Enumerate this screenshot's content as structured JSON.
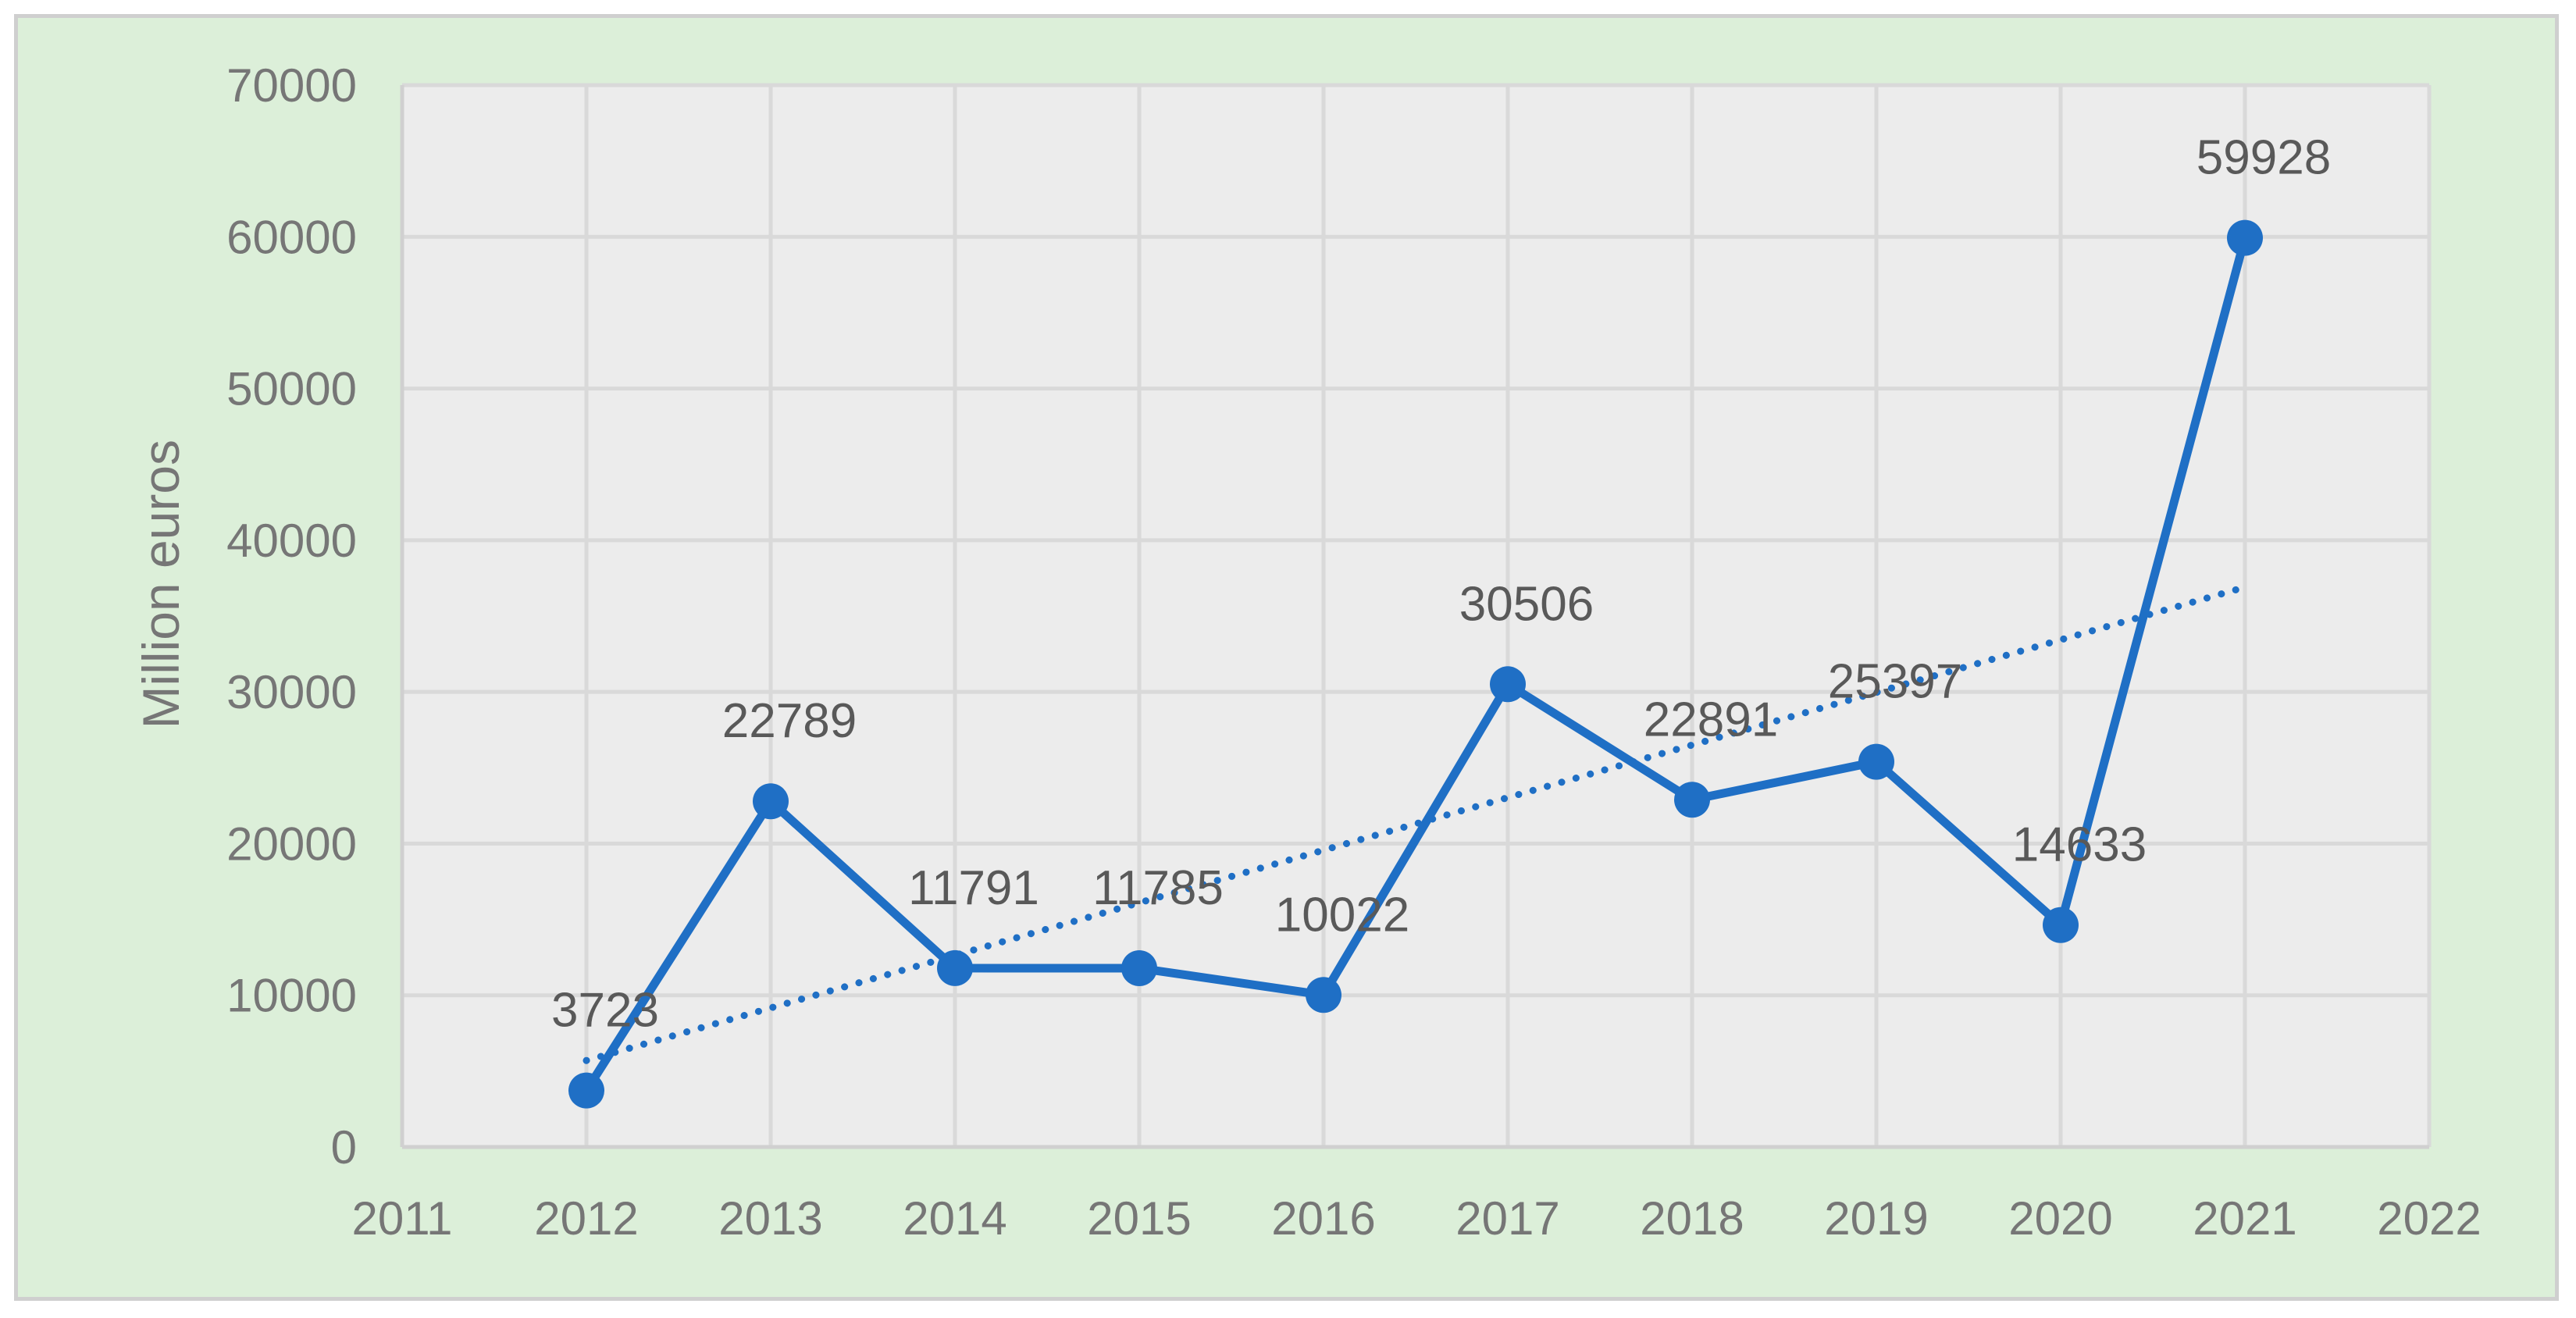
{
  "chart_data": {
    "type": "line",
    "title": "",
    "xlabel": "",
    "ylabel": "Million euros",
    "x": [
      2012,
      2013,
      2014,
      2015,
      2016,
      2017,
      2018,
      2019,
      2020,
      2021
    ],
    "series": [
      {
        "values": [
          3723,
          22789,
          11791,
          11785,
          10022,
          30506,
          22891,
          25397,
          14633,
          59928
        ],
        "color": "#1f6fc5",
        "markers": "circle",
        "data_labels": true
      }
    ],
    "trendline": {
      "type": "linear",
      "style": "dotted",
      "color": "#1f6fc5",
      "x_range": [
        2012,
        2021
      ],
      "y_range": [
        5700,
        36900
      ]
    },
    "xlim": [
      2011,
      2022
    ],
    "ylim": [
      0,
      70000
    ],
    "x_ticks": [
      2011,
      2012,
      2013,
      2014,
      2015,
      2016,
      2017,
      2018,
      2019,
      2020,
      2021,
      2022
    ],
    "y_ticks": [
      0,
      10000,
      20000,
      30000,
      40000,
      50000,
      60000,
      70000
    ],
    "grid": true,
    "legend": "none",
    "plot_background": "#ececec",
    "frame_background": "#dcefd9",
    "gridline_color": "#d9d9d9",
    "text_color": "#767676"
  }
}
